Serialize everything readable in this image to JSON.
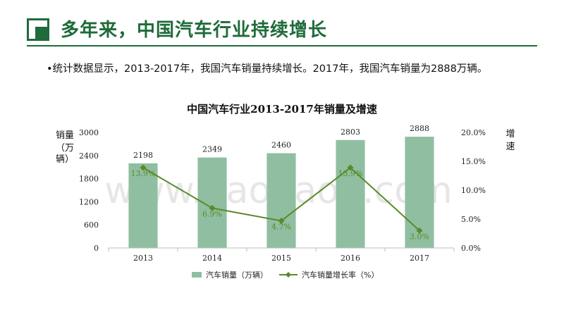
{
  "slide": {
    "title": "多年来，中国汽车行业持续增长",
    "bullet": "•统计数据显示，2013-2017年，我国汽车销量持续增长。2017年，我国汽车销量为2888万辆。",
    "watermark": "www.baogao8.com"
  },
  "colors": {
    "brand": "#1f6b3a",
    "bar": "#8fbfa0",
    "line": "#5b8a2a"
  },
  "chart_data": {
    "type": "bar",
    "title": "中国汽车行业2013-2017年销量及增速",
    "categories": [
      "2013",
      "2014",
      "2015",
      "2016",
      "2017"
    ],
    "series": [
      {
        "name": "汽车销量（万辆）",
        "type": "bar",
        "axis": "left",
        "values": [
          2198,
          2349,
          2460,
          2803,
          2888
        ],
        "labels": [
          "2198",
          "2349",
          "2460",
          "2803",
          "2888"
        ]
      },
      {
        "name": "汽车销量增长率（%）",
        "type": "line",
        "axis": "right",
        "values": [
          13.9,
          6.9,
          4.7,
          13.9,
          3.0
        ],
        "labels": [
          "13.9%",
          "6.9%",
          "4.7%",
          "13.9%",
          "3.0%"
        ]
      }
    ],
    "ylabel_left": "销量（万辆）",
    "ylabel_right": "增速",
    "ylim_left": [
      0,
      3000
    ],
    "yticks_left": [
      "0",
      "600",
      "1200",
      "1800",
      "2400",
      "3000"
    ],
    "ylim_right": [
      0,
      20
    ],
    "yticks_right": [
      "0.0%",
      "5.0%",
      "10.0%",
      "15.0%",
      "20.0%"
    ],
    "grid": false,
    "legend": "bottom"
  }
}
